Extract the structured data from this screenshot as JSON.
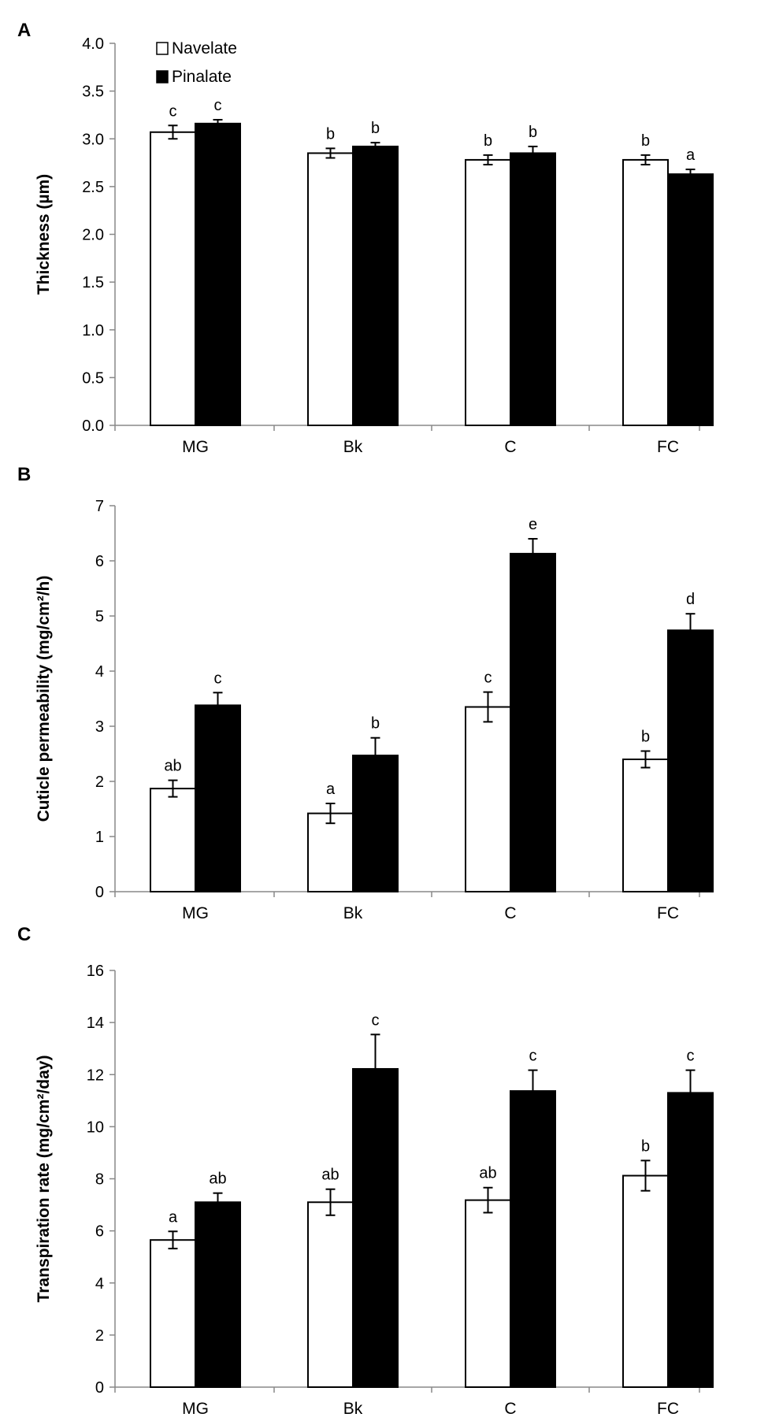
{
  "chart_data": [
    {
      "panel_label": "A",
      "type": "bar",
      "categories": [
        "MG",
        "Bk",
        "C",
        "FC"
      ],
      "ylabel": "Thickness (µm)",
      "ylim": [
        0,
        4.0
      ],
      "ytick_step": 0.5,
      "ytick_decimals": 1,
      "legend": {
        "placement": "top-left",
        "entries": [
          "Navelate",
          "Pinalate"
        ]
      },
      "series": [
        {
          "name": "Navelate",
          "color": "#ffffff",
          "values": [
            3.07,
            2.85,
            2.78,
            2.78
          ],
          "errors": [
            0.07,
            0.05,
            0.05,
            0.05
          ],
          "letters": [
            "c",
            "b",
            "b",
            "b"
          ]
        },
        {
          "name": "Pinalate",
          "color": "#000000",
          "values": [
            3.16,
            2.92,
            2.85,
            2.63
          ],
          "errors": [
            0.04,
            0.04,
            0.07,
            0.05
          ],
          "letters": [
            "c",
            "b",
            "b",
            "a"
          ]
        }
      ]
    },
    {
      "panel_label": "B",
      "type": "bar",
      "categories": [
        "MG",
        "Bk",
        "C",
        "FC"
      ],
      "ylabel": "Cuticle permeability (mg/cm²/h)",
      "ylim": [
        0,
        7
      ],
      "ytick_step": 1,
      "ytick_decimals": 0,
      "series": [
        {
          "name": "Navelate",
          "color": "#ffffff",
          "values": [
            1.87,
            1.42,
            3.35,
            2.4
          ],
          "errors": [
            0.15,
            0.18,
            0.27,
            0.15
          ],
          "letters": [
            "ab",
            "a",
            "c",
            "b"
          ]
        },
        {
          "name": "Pinalate",
          "color": "#000000",
          "values": [
            3.38,
            2.47,
            6.13,
            4.74
          ],
          "errors": [
            0.23,
            0.32,
            0.27,
            0.3
          ],
          "letters": [
            "c",
            "b",
            "e",
            "d"
          ]
        }
      ]
    },
    {
      "panel_label": "C",
      "type": "bar",
      "categories": [
        "MG",
        "Bk",
        "C",
        "FC"
      ],
      "ylabel": "Transpiration rate (mg/cm²/day)",
      "ylim": [
        0,
        16
      ],
      "ytick_step": 2,
      "ytick_decimals": 0,
      "series": [
        {
          "name": "Navelate",
          "color": "#ffffff",
          "values": [
            5.65,
            7.1,
            7.18,
            8.12
          ],
          "errors": [
            0.33,
            0.5,
            0.48,
            0.58
          ],
          "letters": [
            "a",
            "ab",
            "ab",
            "b"
          ]
        },
        {
          "name": "Pinalate",
          "color": "#000000",
          "values": [
            7.1,
            12.22,
            11.37,
            11.3
          ],
          "errors": [
            0.35,
            1.32,
            0.8,
            0.87
          ],
          "letters": [
            "ab",
            "c",
            "c",
            "c"
          ]
        }
      ]
    }
  ]
}
